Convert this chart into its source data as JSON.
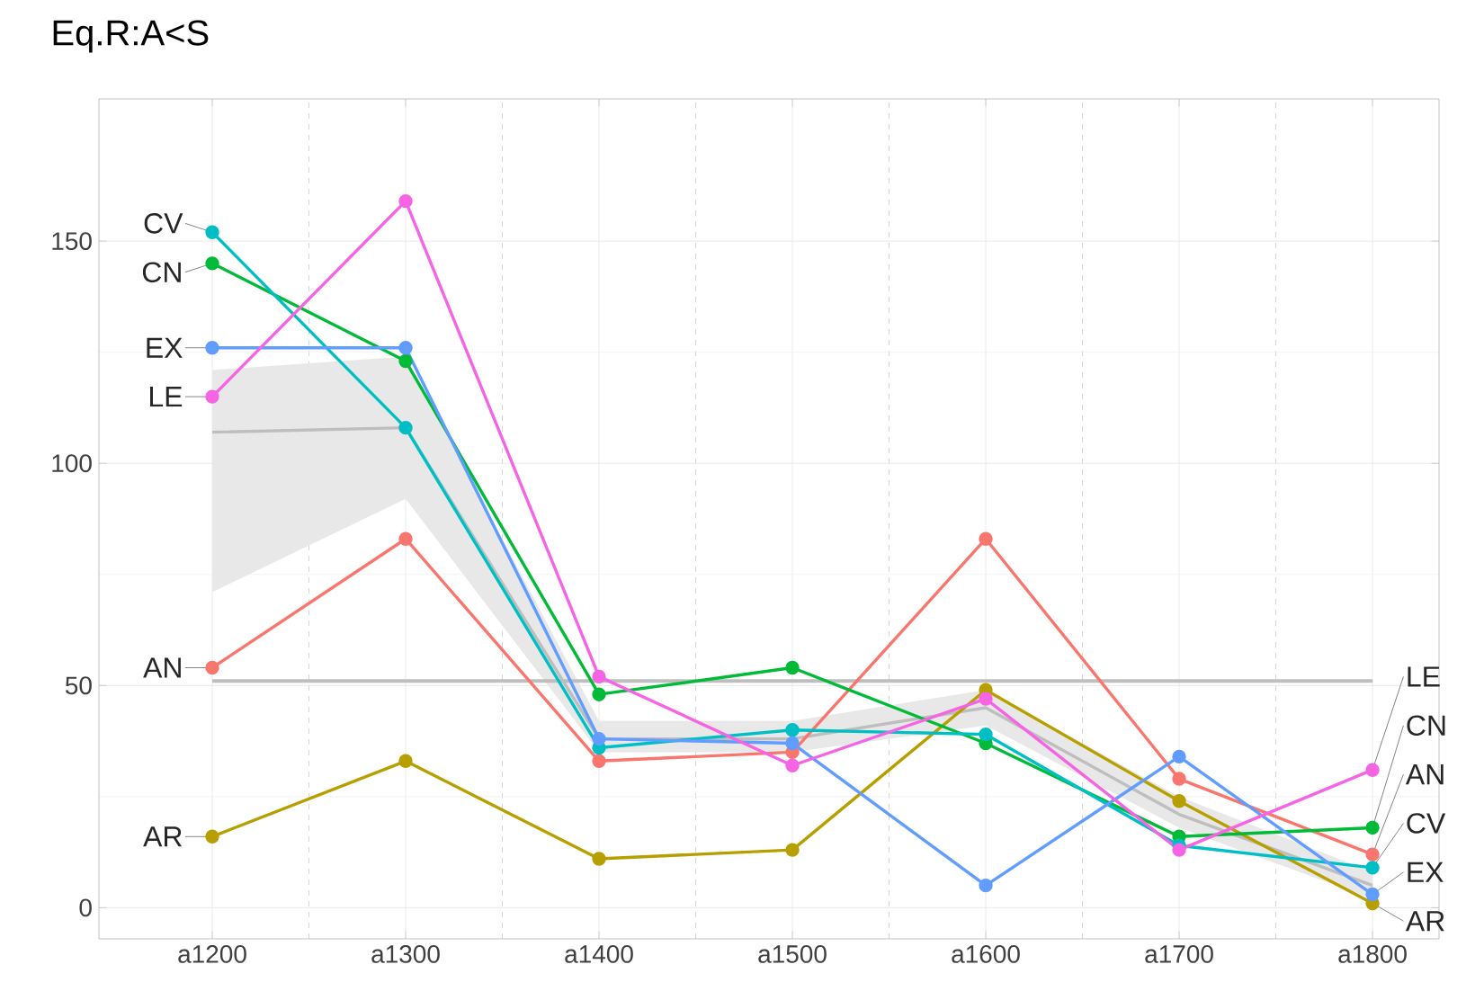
{
  "chart_data": {
    "type": "line",
    "title": "Eq.R:A<S",
    "categories": [
      "a1200",
      "a1300",
      "a1400",
      "a1500",
      "a1600",
      "a1700",
      "a1800"
    ],
    "ylim": [
      -7,
      182
    ],
    "yticks": [
      0,
      50,
      100,
      150
    ],
    "grid": true,
    "marker": "circle",
    "series": [
      {
        "color": "#bebebe",
        "marker": "none",
        "values": [
          107,
          108,
          38,
          38,
          45,
          21,
          5
        ],
        "lower": [
          71,
          92,
          35,
          35,
          41,
          18,
          2
        ],
        "upper": [
          121,
          124,
          42,
          42,
          49,
          25,
          8
        ]
      },
      {
        "name": "AN",
        "color": "#f8766d",
        "values": [
          54,
          83,
          33,
          35,
          83,
          29,
          12
        ]
      },
      {
        "name": "AR",
        "color": "#b79f00",
        "values": [
          16,
          33,
          11,
          13,
          49,
          24,
          1
        ]
      },
      {
        "name": "CN",
        "color": "#00ba38",
        "values": [
          145,
          123,
          48,
          54,
          37,
          16,
          18
        ]
      },
      {
        "name": "CV",
        "color": "#00bfc4",
        "values": [
          152,
          108,
          36,
          40,
          39,
          14,
          9
        ]
      },
      {
        "name": "EX",
        "color": "#619cff",
        "values": [
          126,
          126,
          38,
          37,
          5,
          34,
          3
        ]
      },
      {
        "name": "LE",
        "color": "#f564e3",
        "values": [
          115,
          159,
          52,
          32,
          47,
          13,
          31
        ]
      }
    ],
    "ref_lines": [
      {
        "axis": "y",
        "value": 51,
        "color": "#bebebe"
      }
    ]
  }
}
